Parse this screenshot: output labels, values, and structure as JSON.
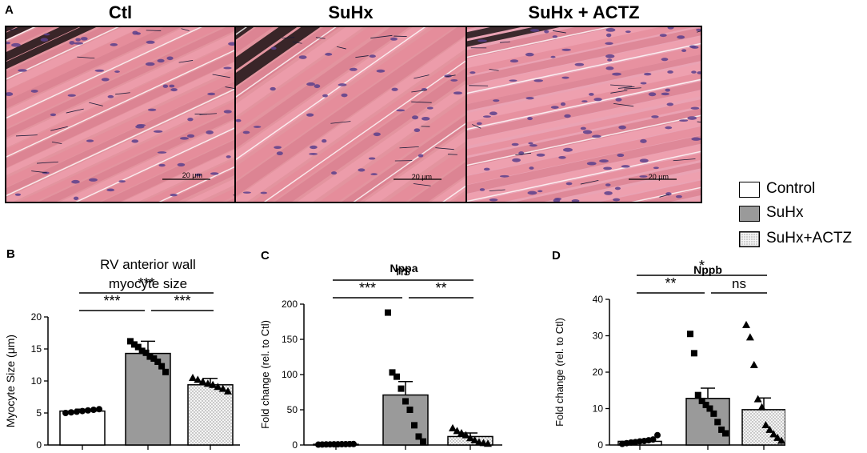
{
  "panel_a": {
    "letter": "A",
    "titles": [
      "Ctl",
      "SuHx",
      "SuHx + ACTZ"
    ],
    "scale_bar_label": "20 μm"
  },
  "legend": {
    "items": [
      {
        "label": "Control",
        "fill": "white"
      },
      {
        "label": "SuHx",
        "fill": "gray"
      },
      {
        "label": "SuHx+ACTZ",
        "fill": "dotted"
      }
    ]
  },
  "colors": {
    "control_fill": "#ffffff",
    "suhx_fill": "#9a9a9a",
    "actz_fill": "#f2f2f2",
    "tissue": "#e89aa6",
    "nuclei": "#5a3f8c"
  },
  "chart_data": [
    {
      "letter": "B",
      "type": "bar",
      "title": "RV anterior wall\nmyocyte size",
      "ylabel": "Myocyte Size (μm)",
      "ylim": [
        0,
        20
      ],
      "yticks": [
        0,
        5,
        10,
        15,
        20
      ],
      "categories": [
        "Control",
        "SuHx",
        "SuHx+ACTZ"
      ],
      "values": [
        5.3,
        14.3,
        9.4
      ],
      "errors": [
        0.3,
        1.9,
        1.0
      ],
      "points": [
        [
          5.0,
          5.1,
          5.2,
          5.3,
          5.4,
          5.5,
          5.6
        ],
        [
          16.2,
          15.7,
          15.3,
          14.7,
          14.4,
          13.8,
          13.5,
          13.0,
          12.3,
          11.4
        ],
        [
          10.5,
          10.2,
          9.9,
          9.6,
          9.4,
          9.1,
          8.8,
          8.4
        ]
      ],
      "markers": [
        "circle",
        "square",
        "triangle"
      ],
      "significance": [
        {
          "from": 0,
          "to": 1,
          "label": "***"
        },
        {
          "from": 1,
          "to": 2,
          "label": "***"
        },
        {
          "from": 0,
          "to": 2,
          "label": "***"
        }
      ]
    },
    {
      "letter": "C",
      "type": "bar",
      "title": "Nppa",
      "ylabel": "Fold change (rel. to Ctl)",
      "ylim": [
        0,
        200
      ],
      "yticks": [
        0,
        50,
        100,
        150,
        200
      ],
      "categories": [
        "Control",
        "SuHx",
        "SuHx+ACTZ"
      ],
      "values": [
        1,
        71,
        12
      ],
      "errors": [
        0.3,
        19,
        5
      ],
      "points": [
        [
          0.5,
          0.7,
          0.8,
          0.9,
          1.0,
          1.0,
          1.1,
          1.2,
          1.3,
          1.4
        ],
        [
          188,
          103,
          97,
          80,
          62,
          50,
          28,
          12,
          5
        ],
        [
          24,
          20,
          17,
          14,
          10,
          7,
          4,
          3,
          2
        ]
      ],
      "markers": [
        "circle",
        "square",
        "triangle"
      ],
      "significance": [
        {
          "from": 0,
          "to": 1,
          "label": "***"
        },
        {
          "from": 1,
          "to": 2,
          "label": "**"
        },
        {
          "from": 0,
          "to": 2,
          "label": "ns"
        }
      ]
    },
    {
      "letter": "D",
      "type": "bar",
      "title": "Nppb",
      "ylabel": "Fold change (rel. to Ctl)",
      "ylim": [
        0,
        40
      ],
      "yticks": [
        0,
        10,
        20,
        30,
        40
      ],
      "categories": [
        "Control",
        "SuHx",
        "SuHx+ACTZ"
      ],
      "values": [
        1.0,
        12.8,
        9.7
      ],
      "errors": [
        0.3,
        2.8,
        3.2
      ],
      "points": [
        [
          0.3,
          0.5,
          0.7,
          0.8,
          1.0,
          1.1,
          1.3,
          1.5,
          2.7
        ],
        [
          30.5,
          25.2,
          13.7,
          12.1,
          11.0,
          10.0,
          8.6,
          6.3,
          4.2,
          3.2
        ],
        [
          33.0,
          29.6,
          22.0,
          12.6,
          10.4,
          5.5,
          4.2,
          3.0,
          2.0,
          1.2
        ]
      ],
      "markers": [
        "circle",
        "square",
        "triangle"
      ],
      "significance": [
        {
          "from": 0,
          "to": 1,
          "label": "**"
        },
        {
          "from": 1,
          "to": 2,
          "label": "ns"
        },
        {
          "from": 0,
          "to": 2,
          "label": "*"
        }
      ]
    }
  ]
}
